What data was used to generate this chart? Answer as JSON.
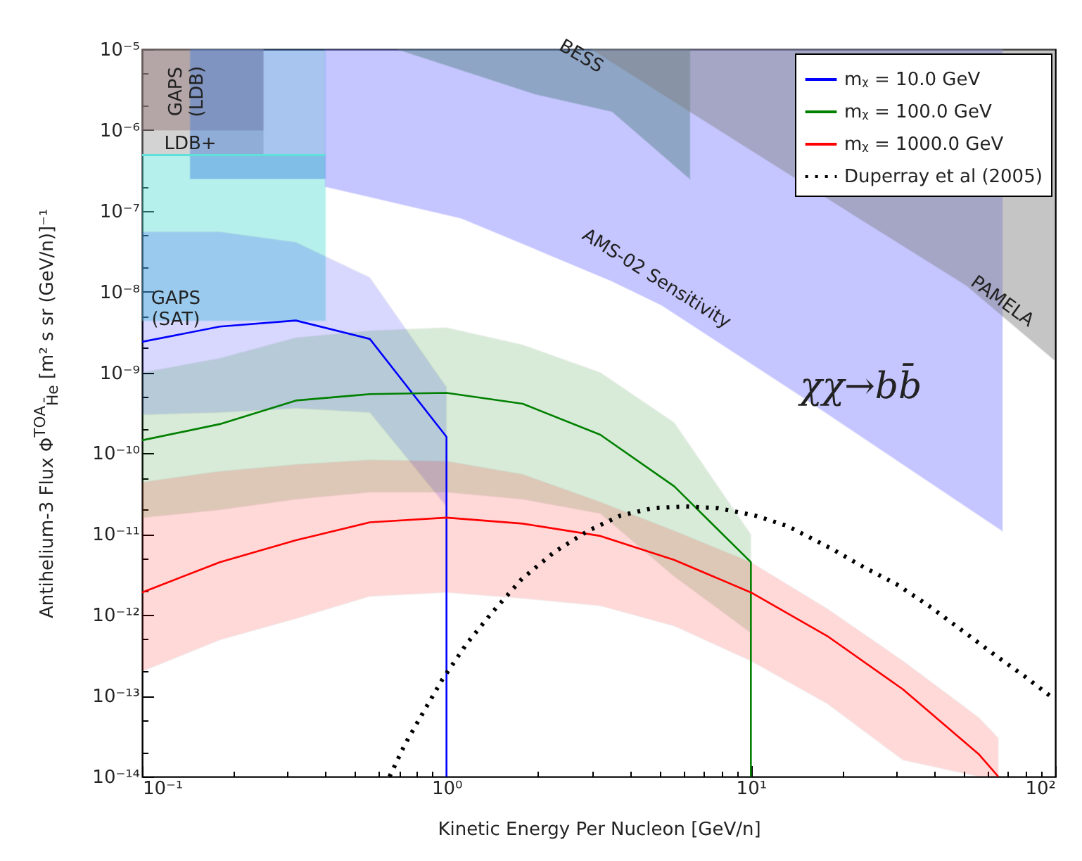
{
  "chart_data": {
    "type": "line",
    "xlabel": "Kinetic Energy Per Nucleon [GeV/n]",
    "ylabel": "Antihelium-3 Flux Φ$^{TOA}$$_{H̄e}$  [m² s sr (GeV/n)]⁻¹",
    "log": "xy",
    "legend": "top right",
    "xlim": [
      0.1,
      100
    ],
    "ylim": [
      1e-14,
      1e-05
    ],
    "xticks": [
      {
        "value": 0.1,
        "label": "10⁻¹"
      },
      {
        "value": 0.2,
        "label": null
      },
      {
        "value": 0.3,
        "label": null
      },
      {
        "value": 0.4,
        "label": null
      },
      {
        "value": 0.5,
        "label": null
      },
      {
        "value": 0.6,
        "label": null
      },
      {
        "value": 0.7,
        "label": null
      },
      {
        "value": 0.8,
        "label": null
      },
      {
        "value": 0.9,
        "label": null
      },
      {
        "value": 1,
        "label": "10⁰"
      },
      {
        "value": 2,
        "label": null
      },
      {
        "value": 3,
        "label": null
      },
      {
        "value": 4,
        "label": null
      },
      {
        "value": 5,
        "label": null
      },
      {
        "value": 6,
        "label": null
      },
      {
        "value": 7,
        "label": null
      },
      {
        "value": 8,
        "label": null
      },
      {
        "value": 9,
        "label": null
      },
      {
        "value": 10,
        "label": "10¹"
      },
      {
        "value": 20,
        "label": null
      },
      {
        "value": 30,
        "label": null
      },
      {
        "value": 40,
        "label": null
      },
      {
        "value": 50,
        "label": null
      },
      {
        "value": 60,
        "label": null
      },
      {
        "value": 70,
        "label": null
      },
      {
        "value": 80,
        "label": null
      },
      {
        "value": 90,
        "label": null
      },
      {
        "value": 100,
        "label": "10²"
      }
    ],
    "yticks": [
      {
        "value": 1e-14,
        "label": "10⁻¹⁴"
      },
      {
        "value": 2e-14,
        "label": null
      },
      {
        "value": 5e-14,
        "label": null
      },
      {
        "value": 1e-13,
        "label": "10⁻¹³"
      },
      {
        "value": 2e-13,
        "label": null
      },
      {
        "value": 5e-13,
        "label": null
      },
      {
        "value": 1e-12,
        "label": "10⁻¹²"
      },
      {
        "value": 2e-12,
        "label": null
      },
      {
        "value": 5e-12,
        "label": null
      },
      {
        "value": 1e-11,
        "label": "10⁻¹¹"
      },
      {
        "value": 2e-11,
        "label": null
      },
      {
        "value": 5e-11,
        "label": null
      },
      {
        "value": 1e-10,
        "label": "10⁻¹⁰"
      },
      {
        "value": 2e-10,
        "label": null
      },
      {
        "value": 5e-10,
        "label": null
      },
      {
        "value": 1e-09,
        "label": "10⁻⁹"
      },
      {
        "value": 2e-09,
        "label": null
      },
      {
        "value": 5e-09,
        "label": null
      },
      {
        "value": 1e-08,
        "label": "10⁻⁸"
      },
      {
        "value": 2e-08,
        "label": null
      },
      {
        "value": 5e-08,
        "label": null
      },
      {
        "value": 1e-07,
        "label": "10⁻⁷"
      },
      {
        "value": 2e-07,
        "label": null
      },
      {
        "value": 5e-07,
        "label": null
      },
      {
        "value": 1e-06,
        "label": "10⁻⁶"
      },
      {
        "value": 2e-06,
        "label": null
      },
      {
        "value": 5e-06,
        "label": null
      },
      {
        "value": 1e-05,
        "label": "10⁻⁵"
      }
    ],
    "series": [
      {
        "type": "line",
        "color": "#a0a0a0",
        "x": [
          0.1,
          0.25
        ],
        "values": [
          null,
          null
        ],
        "upper": [
          1e-05,
          1e-05
        ],
        "lower": [
          4.9e-07,
          4.9e-07
        ]
      },
      {
        "type": "line",
        "color": "#907070",
        "x": [
          0.1,
          0.25
        ],
        "values": [
          null,
          null
        ],
        "upper": [
          1e-05,
          1e-05
        ],
        "lower": [
          1e-06,
          1e-06
        ]
      },
      {
        "type": "line",
        "color": "#60e0d8",
        "x": [
          0.1,
          0.4
        ],
        "values": [
          4.9e-07,
          4.9e-07
        ],
        "upper": [
          4.9e-07,
          4.9e-07
        ],
        "lower": [
          4.4e-09,
          4.4e-09
        ]
      },
      {
        "type": "line",
        "color": "#4080e0",
        "x": [
          0.144,
          0.4
        ],
        "values": [
          null,
          null
        ],
        "upper": [
          1e-05,
          1e-05
        ],
        "lower": [
          2.5e-07,
          2.5e-07
        ]
      },
      {
        "type": "line",
        "color": "#8080ff",
        "x": [
          0.4,
          1.12,
          1.95,
          3.5,
          5.1,
          14.3,
          67
        ],
        "values": [
          null,
          null,
          null,
          null,
          null,
          null,
          null
        ],
        "upper": [
          1e-05,
          1e-05,
          1e-05,
          1e-05,
          1e-05,
          1e-05,
          1e-05
        ],
        "lower": [
          2e-07,
          8.1e-08,
          3.4e-08,
          1.35e-08,
          6.8e-09,
          5.4e-10,
          1.1e-11
        ]
      },
      {
        "type": "line",
        "color": "#508080",
        "x": [
          0.69,
          1.95,
          3.5,
          6.3
        ],
        "values": [
          null,
          null,
          null,
          null
        ],
        "upper": [
          1e-05,
          1e-05,
          1e-05,
          1e-05
        ],
        "lower": [
          1e-05,
          2.8e-06,
          1.7e-06,
          2.5e-07
        ]
      },
      {
        "type": "line",
        "color": "#808080",
        "x": [
          3.0,
          6.3,
          23.3,
          51,
          100
        ],
        "values": [
          null,
          null,
          null,
          null,
          null
        ],
        "upper": [
          1e-05,
          1e-05,
          1e-05,
          1e-05,
          1e-05
        ],
        "lower": [
          1e-05,
          1.7e-06,
          7.6e-08,
          1.2e-08,
          1.4e-09
        ]
      },
      {
        "name": "mᵪ = 10.0 GeV",
        "color": "#0000ff",
        "x": [
          0.1,
          0.18,
          0.32,
          0.56,
          1.0,
          1.0
        ],
        "values": [
          2.4e-09,
          3.7e-09,
          4.4e-09,
          2.6e-09,
          1.6e-10,
          1e-14
        ],
        "upper": [
          5.5e-08,
          5.5e-08,
          4.1e-08,
          1.5e-08,
          6.6e-10,
          null
        ],
        "lower": [
          3e-10,
          3.2e-10,
          3.6e-10,
          3.2e-10,
          2.2e-11,
          null
        ]
      },
      {
        "name": "mᵪ = 100.0 GeV",
        "color": "#008000",
        "x": [
          0.1,
          0.18,
          0.32,
          0.56,
          1,
          1.78,
          3.2,
          5.6,
          10,
          10
        ],
        "values": [
          1.45e-10,
          2.3e-10,
          4.5e-10,
          5.4e-10,
          5.6e-10,
          4.1e-10,
          1.7e-10,
          3.9e-11,
          4.5e-12,
          1e-14
        ],
        "upper": [
          1e-09,
          1.5e-09,
          2.7e-09,
          3.3e-09,
          3.6e-09,
          2.2e-09,
          1e-09,
          2.4e-10,
          9.9e-12,
          null
        ],
        "lower": [
          1.6e-11,
          2e-11,
          2.7e-11,
          3.3e-11,
          3.3e-11,
          2.7e-11,
          1.8e-11,
          3e-12,
          6e-13,
          null
        ]
      },
      {
        "name": "mᵪ = 1000.0 GeV",
        "color": "#ff0000",
        "x": [
          0.1,
          0.18,
          0.32,
          0.56,
          1,
          1.78,
          3.2,
          5.6,
          10,
          17.8,
          31.6,
          56,
          65
        ],
        "values": [
          1.9e-12,
          4.5e-12,
          8.4e-12,
          1.4e-11,
          1.6e-11,
          1.35e-11,
          9.5e-12,
          4.8e-12,
          1.9e-12,
          5.5e-13,
          1.2e-13,
          1.9e-14,
          1e-14
        ],
        "upper": [
          4.4e-11,
          6e-11,
          7.3e-11,
          8.3e-11,
          8e-11,
          5.5e-11,
          2.5e-11,
          1.1e-11,
          4.5e-12,
          1.2e-12,
          2.7e-13,
          5.4e-14,
          3e-14
        ],
        "lower": [
          2e-13,
          4.9e-13,
          9e-13,
          1.7e-12,
          1.9e-12,
          1.6e-12,
          1.3e-12,
          7.3e-13,
          2.7e-13,
          8e-14,
          1.6e-14,
          1e-14,
          1e-14
        ]
      },
      {
        "name": "Duperray et al (2005)",
        "color": "#000000",
        "line_style": "dotted",
        "x": [
          0.65,
          0.73,
          0.84,
          0.97,
          1.17,
          1.42,
          1.77,
          2.26,
          2.92,
          3.73,
          4.77,
          6.1,
          7.8,
          10.3,
          13.2,
          18.4,
          23.5,
          30.1,
          38.4,
          49.5,
          63.3,
          80,
          96
        ],
        "values": [
          1e-14,
          2.5e-14,
          6.3e-14,
          1.6e-13,
          4.5e-13,
          1.1e-12,
          2.8e-12,
          6e-12,
          1.1e-11,
          1.7e-11,
          2.1e-11,
          2.2e-11,
          2.1e-11,
          1.7e-11,
          1.26e-11,
          6.6e-12,
          3.9e-12,
          2.4e-12,
          1.3e-12,
          6.4e-13,
          3.2e-13,
          1.7e-13,
          1e-13
        ]
      }
    ],
    "annotations": [
      "GAPS\n(LDB)",
      "LDB+",
      "GAPS\n(SAT)",
      "BESS",
      "AMS-02 Sensitivity",
      "PAMELA",
      "χχ→bb̄"
    ]
  }
}
